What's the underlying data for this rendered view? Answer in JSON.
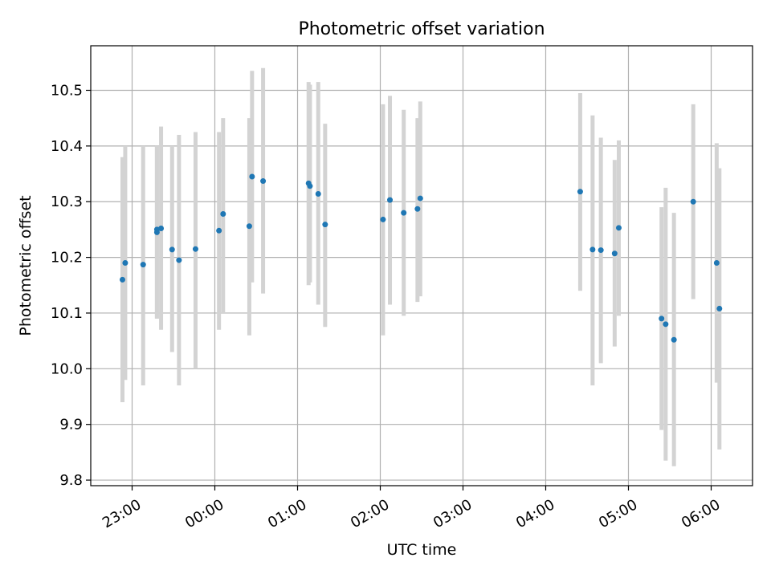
{
  "chart_data": {
    "type": "scatter",
    "title": "Photometric offset variation",
    "xlabel": "UTC time",
    "ylabel": "Photometric offset",
    "x_ticks": [
      "23:00",
      "00:00",
      "01:00",
      "02:00",
      "03:00",
      "04:00",
      "05:00",
      "06:00"
    ],
    "y_ticks": [
      "9.8",
      "9.9",
      "10.0",
      "10.1",
      "10.2",
      "10.3",
      "10.4",
      "10.5"
    ],
    "xlim": [
      "22:30",
      "06:30"
    ],
    "ylim": [
      9.79,
      10.58
    ],
    "grid": true,
    "colors": {
      "point": "#1f77b4",
      "errorbar": "#d3d3d3",
      "grid": "#b0b0b0"
    },
    "series": [
      {
        "points": [
          {
            "x": "22:53",
            "y": 10.16,
            "lo": 9.94,
            "hi": 10.38
          },
          {
            "x": "22:55",
            "y": 10.19,
            "lo": 9.98,
            "hi": 10.4
          },
          {
            "x": "23:08",
            "y": 10.187,
            "lo": 9.97,
            "hi": 10.4
          },
          {
            "x": "23:18",
            "y": 10.245,
            "lo": 10.09,
            "hi": 10.4
          },
          {
            "x": "23:18",
            "y": 10.25,
            "lo": 10.09,
            "hi": 10.4
          },
          {
            "x": "23:21",
            "y": 10.252,
            "lo": 10.07,
            "hi": 10.435
          },
          {
            "x": "23:29",
            "y": 10.214,
            "lo": 10.03,
            "hi": 10.4
          },
          {
            "x": "23:34",
            "y": 10.195,
            "lo": 9.97,
            "hi": 10.42
          },
          {
            "x": "23:46",
            "y": 10.215,
            "lo": 10.0,
            "hi": 10.425
          },
          {
            "x": "00:03",
            "y": 10.248,
            "lo": 10.07,
            "hi": 10.425
          },
          {
            "x": "00:06",
            "y": 10.278,
            "lo": 10.1,
            "hi": 10.45
          },
          {
            "x": "00:25",
            "y": 10.256,
            "lo": 10.06,
            "hi": 10.45
          },
          {
            "x": "00:27",
            "y": 10.345,
            "lo": 10.155,
            "hi": 10.535
          },
          {
            "x": "00:35",
            "y": 10.337,
            "lo": 10.135,
            "hi": 10.54
          },
          {
            "x": "01:08",
            "y": 10.333,
            "lo": 10.15,
            "hi": 10.515
          },
          {
            "x": "01:09",
            "y": 10.328,
            "lo": 10.155,
            "hi": 10.51
          },
          {
            "x": "01:15",
            "y": 10.314,
            "lo": 10.115,
            "hi": 10.515
          },
          {
            "x": "01:20",
            "y": 10.259,
            "lo": 10.075,
            "hi": 10.44
          },
          {
            "x": "02:02",
            "y": 10.268,
            "lo": 10.06,
            "hi": 10.475
          },
          {
            "x": "02:07",
            "y": 10.303,
            "lo": 10.115,
            "hi": 10.49
          },
          {
            "x": "02:17",
            "y": 10.28,
            "lo": 10.095,
            "hi": 10.465
          },
          {
            "x": "02:27",
            "y": 10.287,
            "lo": 10.12,
            "hi": 10.45
          },
          {
            "x": "02:29",
            "y": 10.306,
            "lo": 10.13,
            "hi": 10.48
          },
          {
            "x": "04:25",
            "y": 10.318,
            "lo": 10.14,
            "hi": 10.495
          },
          {
            "x": "04:34",
            "y": 10.214,
            "lo": 9.97,
            "hi": 10.455
          },
          {
            "x": "04:40",
            "y": 10.213,
            "lo": 10.01,
            "hi": 10.415
          },
          {
            "x": "04:50",
            "y": 10.207,
            "lo": 10.04,
            "hi": 10.375
          },
          {
            "x": "04:53",
            "y": 10.253,
            "lo": 10.095,
            "hi": 10.41
          },
          {
            "x": "05:24",
            "y": 10.09,
            "lo": 9.89,
            "hi": 10.29
          },
          {
            "x": "05:27",
            "y": 10.08,
            "lo": 9.835,
            "hi": 10.325
          },
          {
            "x": "05:33",
            "y": 10.052,
            "lo": 9.825,
            "hi": 10.28
          },
          {
            "x": "05:47",
            "y": 10.3,
            "lo": 10.125,
            "hi": 10.475
          },
          {
            "x": "06:04",
            "y": 10.19,
            "lo": 9.975,
            "hi": 10.405
          },
          {
            "x": "06:06",
            "y": 10.108,
            "lo": 9.855,
            "hi": 10.36
          }
        ]
      }
    ]
  }
}
